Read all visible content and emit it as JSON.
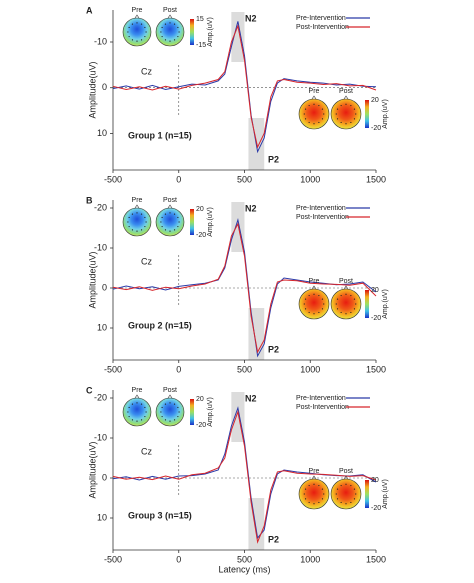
{
  "chart_data": [
    {
      "type": "line",
      "panel": "A",
      "title": "Group 1 (n=15)",
      "channel": "Cz",
      "annotations": [
        "N2",
        "P2"
      ],
      "ylabel": "Amplitude(uV)",
      "x": [
        -500,
        -400,
        -300,
        -200,
        -100,
        0,
        100,
        200,
        300,
        350,
        400,
        450,
        500,
        550,
        600,
        650,
        700,
        750,
        800,
        900,
        1000,
        1100,
        1200,
        1300,
        1400,
        1500
      ],
      "series": [
        {
          "name": "Pre-Intervention",
          "color": "#2b3aa8",
          "values": [
            0.2,
            -0.4,
            0.3,
            -0.5,
            0.4,
            -0.2,
            -0.8,
            -0.6,
            -1.5,
            -3,
            -9,
            -14.5,
            -7,
            6,
            14,
            11,
            3,
            -1,
            -2,
            -1.5,
            -1.2,
            -1,
            -0.6,
            -0.8,
            -0.3,
            -0.2
          ]
        },
        {
          "name": "Post-Intervention",
          "color": "#d7262c",
          "values": [
            -0.3,
            0.4,
            -0.2,
            0.5,
            -0.3,
            0.3,
            -0.5,
            -1,
            -1.8,
            -3.5,
            -10,
            -13.5,
            -6,
            6.5,
            13,
            10,
            2,
            -1.5,
            -1.8,
            -1.2,
            -1,
            -0.7,
            -0.9,
            -0.4,
            -0.5,
            0.5
          ]
        }
      ],
      "xlim": [
        -500,
        1500
      ],
      "xticks": [
        -500,
        0,
        500,
        1000,
        1500
      ],
      "ylim": [
        -17,
        18
      ],
      "yticks": [
        -10,
        0,
        10
      ],
      "y_inverted": true,
      "windows": [
        [
          400,
          500
        ],
        [
          530,
          650
        ]
      ],
      "legend": "upper right",
      "topomaps": [
        {
          "labels": [
            "Pre",
            "Post"
          ],
          "colorbar_ticks": [
            15,
            -15
          ],
          "colorbar_label": "Amp.(uV)"
        },
        {
          "labels": [
            "Pre",
            "Post"
          ],
          "colorbar_ticks": [
            20,
            -20
          ],
          "colorbar_label": "Amp.(uV)"
        }
      ]
    },
    {
      "type": "line",
      "panel": "B",
      "title": "Group 2 (n=15)",
      "channel": "Cz",
      "annotations": [
        "N2",
        "P2"
      ],
      "ylabel": "Amplitude(uV)",
      "x": [
        -500,
        -400,
        -300,
        -200,
        -100,
        0,
        100,
        200,
        300,
        350,
        400,
        450,
        500,
        550,
        600,
        650,
        700,
        750,
        800,
        900,
        1000,
        1100,
        1200,
        1300,
        1400,
        1500
      ],
      "series": [
        {
          "name": "Pre-Intervention",
          "color": "#2b3aa8",
          "values": [
            0.3,
            -0.5,
            0.2,
            -0.3,
            0.5,
            -0.4,
            -0.8,
            -1.2,
            -2,
            -5,
            -12,
            -17,
            -9,
            6,
            17,
            14,
            5,
            -1,
            -2.5,
            -2,
            -1.5,
            -1.2,
            -0.8,
            -1,
            -1.5,
            1
          ]
        },
        {
          "name": "Post-Intervention",
          "color": "#d7262c",
          "values": [
            -0.2,
            0.4,
            -0.3,
            0.6,
            -0.2,
            0.2,
            -0.5,
            -1,
            -2.2,
            -5.5,
            -13,
            -16,
            -8,
            7,
            16,
            13,
            4,
            -1.5,
            -2,
            -1.8,
            -1.2,
            -1,
            -0.9,
            -0.7,
            -1.2,
            2
          ]
        }
      ],
      "xlim": [
        -500,
        1500
      ],
      "xticks": [
        -500,
        0,
        500,
        1000,
        1500
      ],
      "ylim": [
        -22,
        18
      ],
      "yticks": [
        -20,
        -10,
        0,
        10
      ],
      "y_inverted": true,
      "windows": [
        [
          400,
          500
        ],
        [
          530,
          650
        ]
      ],
      "legend": "upper right",
      "topomaps": [
        {
          "labels": [
            "Pre",
            "Post"
          ],
          "colorbar_ticks": [
            20,
            -20
          ],
          "colorbar_label": "Amp.(uV)"
        },
        {
          "labels": [
            "Pre",
            "Post"
          ],
          "colorbar_ticks": [
            20,
            -20
          ],
          "colorbar_label": "Amp.(uV)"
        }
      ]
    },
    {
      "type": "line",
      "panel": "C",
      "title": "Group 3 (n=15)",
      "channel": "Cz",
      "annotations": [
        "N2",
        "P2"
      ],
      "ylabel": "Amplitude(uV)",
      "xlabel": "Latency (ms)",
      "x": [
        -500,
        -400,
        -300,
        -200,
        -100,
        0,
        100,
        200,
        300,
        350,
        400,
        450,
        500,
        550,
        600,
        650,
        700,
        750,
        800,
        900,
        1000,
        1100,
        1200,
        1300,
        1400,
        1500
      ],
      "series": [
        {
          "name": "Pre-Intervention",
          "color": "#2b3aa8",
          "values": [
            0.2,
            -0.3,
            0.5,
            -0.4,
            0.3,
            -0.5,
            -0.6,
            -1,
            -2,
            -6,
            -13,
            -17.5,
            -9,
            5,
            15,
            13,
            4,
            -1,
            -2,
            -1.5,
            -1.2,
            -0.8,
            -0.6,
            -0.5,
            -0.8,
            1
          ]
        },
        {
          "name": "Post-Intervention",
          "color": "#d7262c",
          "values": [
            -0.4,
            0.3,
            -0.2,
            0.4,
            -0.5,
            0.3,
            -0.8,
            -1.2,
            -2.5,
            -5,
            -12,
            -16.5,
            -8,
            6,
            16,
            12,
            3,
            -1.5,
            -1.8,
            -1.2,
            -1,
            -0.9,
            -0.7,
            -0.4,
            -0.6,
            0.5
          ]
        }
      ],
      "xlim": [
        -500,
        1500
      ],
      "xticks": [
        -500,
        0,
        500,
        1000,
        1500
      ],
      "ylim": [
        -22,
        18
      ],
      "yticks": [
        -20,
        -10,
        0,
        10
      ],
      "y_inverted": true,
      "windows": [
        [
          400,
          500
        ],
        [
          530,
          650
        ]
      ],
      "legend": "upper right",
      "topomaps": [
        {
          "labels": [
            "Pre",
            "Post"
          ],
          "colorbar_ticks": [
            20,
            -20
          ],
          "colorbar_label": "Amp.(uV)"
        },
        {
          "labels": [
            "Pre",
            "Post"
          ],
          "colorbar_ticks": [
            20,
            -20
          ],
          "colorbar_label": "Amp.(uV)"
        }
      ]
    }
  ]
}
